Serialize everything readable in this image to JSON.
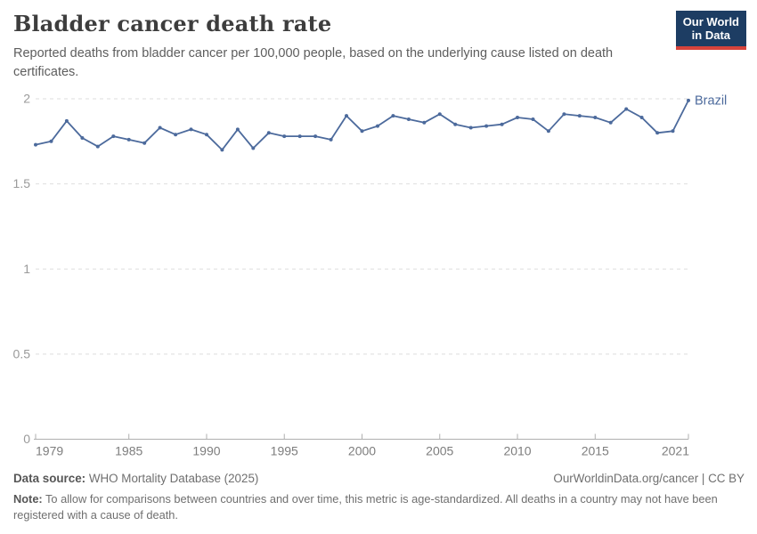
{
  "header": {
    "title": "Bladder cancer death rate",
    "subtitle": "Reported deaths from bladder cancer per 100,000 people, based on the underlying cause listed on death certificates.",
    "logo": {
      "line1": "Our World",
      "line2": "in Data"
    }
  },
  "chart_data": {
    "type": "line",
    "title": "Bladder cancer death rate",
    "xlabel": "",
    "ylabel": "",
    "xlim": [
      1979,
      2021
    ],
    "ylim": [
      0,
      2
    ],
    "grid": "horizontal-dashed",
    "legend_position": "end-of-line-label",
    "x_ticks": [
      1979,
      1985,
      1990,
      1995,
      2000,
      2005,
      2010,
      2015,
      2021
    ],
    "y_ticks": [
      0,
      0.5,
      1,
      1.5,
      2
    ],
    "series": [
      {
        "name": "Brazil",
        "color": "#4C6A9C",
        "x": [
          1979,
          1980,
          1981,
          1982,
          1983,
          1984,
          1985,
          1986,
          1987,
          1988,
          1989,
          1990,
          1991,
          1992,
          1993,
          1994,
          1995,
          1996,
          1997,
          1998,
          1999,
          2000,
          2001,
          2002,
          2003,
          2004,
          2005,
          2006,
          2007,
          2008,
          2009,
          2010,
          2011,
          2012,
          2013,
          2014,
          2015,
          2016,
          2017,
          2018,
          2019,
          2020,
          2021
        ],
        "values": [
          1.73,
          1.75,
          1.87,
          1.77,
          1.72,
          1.78,
          1.76,
          1.74,
          1.83,
          1.79,
          1.82,
          1.79,
          1.7,
          1.82,
          1.71,
          1.8,
          1.78,
          1.78,
          1.78,
          1.76,
          1.9,
          1.81,
          1.84,
          1.9,
          1.88,
          1.86,
          1.91,
          1.85,
          1.83,
          1.84,
          1.85,
          1.89,
          1.88,
          1.81,
          1.91,
          1.9,
          1.89,
          1.86,
          1.94,
          1.89,
          1.8,
          1.81,
          1.99
        ]
      }
    ],
    "end_label": "Brazil"
  },
  "footer": {
    "source_label": "Data source:",
    "source_value": " WHO Mortality Database (2025)",
    "link": "OurWorldinData.org/cancer | CC BY",
    "note_label": "Note:",
    "note_value": " To allow for comparisons between countries and over time, this metric is age-standardized. All deaths in a country may not have been registered with a cause of death."
  },
  "colors": {
    "series": "#4C6A9C",
    "grid": "#dedede",
    "axis": "#afafaf",
    "y_tick_text": "#9a9a9a",
    "x_tick_text": "#7d7d7d",
    "logo_bg": "#1d3d63",
    "logo_accent": "#d7433b",
    "title_text": "#3d3d3d"
  }
}
